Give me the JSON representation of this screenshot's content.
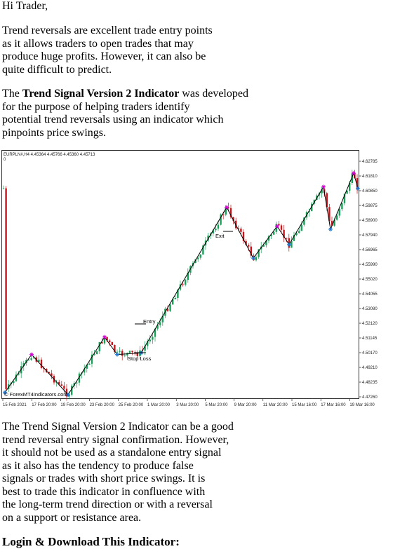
{
  "greeting": "Hi Trader,",
  "para1": {
    "lines": [
      "Trend reversals are excellent trade entry points",
      "as it allows traders to open trades that may",
      "produce huge profits. However, it can also be",
      "quite difficult to predict."
    ]
  },
  "para2": {
    "pre": "The ",
    "bold": "Trend Signal Version 2 Indicator",
    "post": " was developed",
    "lines": [
      "for the purpose of helping traders identify",
      "potential trend reversals using an indicator which",
      "pinpoints price swings."
    ]
  },
  "para3": {
    "lines": [
      "The Trend Signal Version 2 Indicator can be a good",
      "trend reversal entry signal confirmation. However,",
      "it should not be used as a standalone entry signal",
      "as it also has the tendency to produce false",
      "signals or trades with short price swings. It is",
      "best to trade this indicator in confluence with",
      "the long-term trend direction or with a reversal",
      "on a support or resistance area."
    ]
  },
  "login_heading": "Login & Download This Indicator:",
  "chart_data": {
    "type": "candlestick",
    "header": "EURPLN#,H4  4.45364 4.45766 4.45360 4.45713",
    "subheader": "0",
    "y_ticks": [
      "4.62785",
      "4.61810",
      "4.60850",
      "4.59875",
      "4.58900",
      "4.57940",
      "4.56965",
      "4.55990",
      "4.55020",
      "4.54055",
      "4.53080",
      "4.52120",
      "4.51145",
      "4.50170",
      "4.49210",
      "4.48235",
      "4.47260"
    ],
    "ylim": [
      4.4726,
      4.62785
    ],
    "x_ticks": [
      "15 Feb 2021",
      "17 Feb 20:00",
      "19 Feb 20:00",
      "23 Feb 20:00",
      "25 Feb 20:00",
      "1 Mar 20:00",
      "3 Mar 20:00",
      "5 Mar 20:00",
      "9 Mar 20:00",
      "11 Mar 20:00",
      "15 Mar 16:00",
      "17 Mar 16:00",
      "19 Mar 16:00"
    ],
    "swing_points": [
      {
        "type": "low",
        "value": 4.4755
      },
      {
        "type": "high",
        "value": 4.5005
      },
      {
        "type": "low",
        "value": 4.474
      },
      {
        "type": "high",
        "value": 4.512
      },
      {
        "type": "low",
        "value": 4.5005
      },
      {
        "type": "low",
        "value": 4.5015
      },
      {
        "type": "high",
        "value": 4.5975
      },
      {
        "type": "low",
        "value": 4.564
      },
      {
        "type": "high",
        "value": 4.585
      },
      {
        "type": "low",
        "value": 4.573
      },
      {
        "type": "high",
        "value": 4.611
      },
      {
        "type": "low",
        "value": 4.583
      },
      {
        "type": "high",
        "value": 4.62
      },
      {
        "type": "low",
        "value": 4.61
      }
    ],
    "annotations": {
      "entry": "Entry",
      "stop_loss": "Stop Loss",
      "exit": "Exit"
    },
    "watermark": "© ForexMT4Indicators.com",
    "colors": {
      "up": "#18a058",
      "down": "#c4161c",
      "line": "#000000",
      "high_marker": "#d400d4",
      "low_marker": "#1e78d2"
    }
  }
}
